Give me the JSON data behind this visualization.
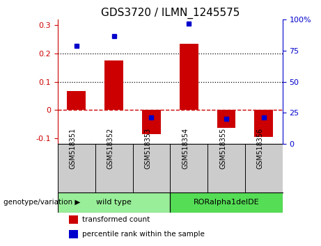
{
  "title": "GDS3720 / ILMN_1245575",
  "categories": [
    "GSM518351",
    "GSM518352",
    "GSM518353",
    "GSM518354",
    "GSM518355",
    "GSM518356"
  ],
  "transformed_count": [
    0.068,
    0.175,
    -0.085,
    0.235,
    -0.065,
    -0.095
  ],
  "percentile_rank": [
    79,
    87,
    21,
    97,
    20,
    21
  ],
  "ylim_left": [
    -0.12,
    0.32
  ],
  "ylim_right": [
    0,
    100
  ],
  "yticks_left": [
    -0.1,
    0.0,
    0.1,
    0.2,
    0.3
  ],
  "yticks_right": [
    0,
    25,
    50,
    75,
    100
  ],
  "bar_color": "#cc0000",
  "dot_color": "#0000cc",
  "zero_line_color": "#cc0000",
  "groups": [
    {
      "label": "wild type",
      "indices": [
        0,
        1,
        2
      ],
      "color": "#99ee99"
    },
    {
      "label": "RORalpha1delDE",
      "indices": [
        3,
        4,
        5
      ],
      "color": "#55dd55"
    }
  ],
  "group_label": "genotype/variation",
  "legend_items": [
    {
      "label": "transformed count",
      "color": "#cc0000"
    },
    {
      "label": "percentile rank within the sample",
      "color": "#0000cc"
    }
  ],
  "grid_dotted_values": [
    0.1,
    0.2
  ],
  "title_fontsize": 11,
  "tick_fontsize": 8,
  "label_fontsize": 7,
  "bar_width": 0.5,
  "label_bg": "#cccccc",
  "label_border": "#888888"
}
